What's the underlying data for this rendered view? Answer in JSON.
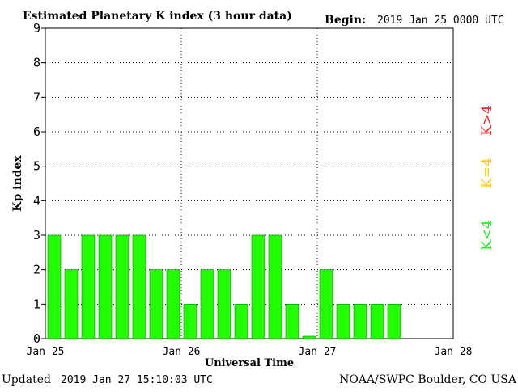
{
  "header": {
    "title": "Estimated Planetary K index (3 hour data)",
    "begin_label": "Begin:",
    "begin_value": "2019 Jan 25 0000 UTC"
  },
  "footer": {
    "updated_label": "Updated",
    "updated_value": "2019 Jan 27 15:10:03 UTC",
    "source": "NOAA/SWPC Boulder, CO USA"
  },
  "legend": {
    "items": [
      {
        "label": "K<4",
        "color": "#22ee22"
      },
      {
        "label": "K=4",
        "color": "#ffcc00"
      },
      {
        "label": "K>4",
        "color": "#ee2222"
      }
    ]
  },
  "chart_data": {
    "type": "bar",
    "ylabel": "Kp index",
    "xlabel": "Universal Time",
    "ylim": [
      0,
      9
    ],
    "yticks": [
      "0",
      "1",
      "2",
      "3",
      "4",
      "5",
      "6",
      "7",
      "8",
      "9"
    ],
    "xticks": [
      "Jan 25",
      "Jan 26",
      "Jan 27",
      "Jan 28"
    ],
    "grid": true,
    "bar_color": "#22ff00",
    "bar_outline": "#008800",
    "series": [
      {
        "interval_hours": 3,
        "values": [
          3,
          2,
          3,
          3,
          3,
          3,
          2,
          2,
          1,
          2,
          2,
          1,
          3,
          3,
          1,
          0.07,
          2,
          1,
          1,
          1,
          1
        ]
      }
    ]
  }
}
